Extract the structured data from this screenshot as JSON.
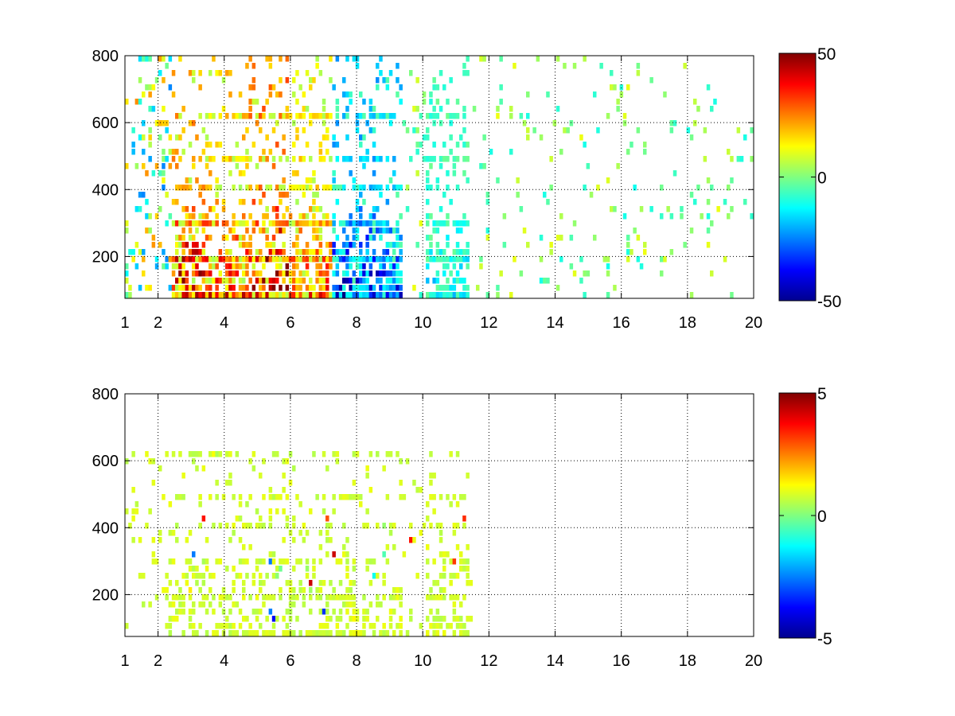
{
  "chart_data": [
    {
      "type": "heatmap",
      "name": "top-panel",
      "title": "",
      "xlabel": "",
      "ylabel": "",
      "xlim": [
        1,
        20
      ],
      "ylim": [
        75,
        800
      ],
      "x_ticks": [
        "1",
        "2",
        "4",
        "6",
        "8",
        "10",
        "12",
        "14",
        "16",
        "18",
        "20"
      ],
      "x_tick_values": [
        1,
        2,
        4,
        6,
        8,
        10,
        12,
        14,
        16,
        18,
        20
      ],
      "y_ticks": [
        "200",
        "400",
        "600",
        "800"
      ],
      "y_tick_values": [
        200,
        400,
        600,
        800
      ],
      "grid": true,
      "colormap": "jet",
      "clim": [
        -50,
        50
      ],
      "colorbar_ticks": [
        "50",
        "0",
        "-50"
      ],
      "colorbar_tick_values": [
        50,
        0,
        -50
      ],
      "density": 1.0,
      "bands": [
        {
          "x": [
            2.4,
            3.5
          ],
          "value": 38
        },
        {
          "x": [
            3.5,
            4.7
          ],
          "value": 32
        },
        {
          "x": [
            4.7,
            5.9
          ],
          "value": 44
        },
        {
          "x": [
            5.9,
            7.2
          ],
          "value": 28
        },
        {
          "x": [
            7.2,
            8.6
          ],
          "value": -34
        },
        {
          "x": [
            8.6,
            9.3
          ],
          "value": -30
        },
        {
          "x": [
            10.0,
            11.4
          ],
          "value": -14
        }
      ],
      "row_stripes_y": [
        100,
        200,
        300,
        410,
        510,
        620
      ]
    },
    {
      "type": "heatmap",
      "name": "bottom-panel",
      "title": "",
      "xlabel": "",
      "ylabel": "",
      "xlim": [
        1,
        20
      ],
      "ylim": [
        75,
        800
      ],
      "x_ticks": [
        "1",
        "2",
        "4",
        "6",
        "8",
        "10",
        "12",
        "14",
        "16",
        "18",
        "20"
      ],
      "x_tick_values": [
        1,
        2,
        4,
        6,
        8,
        10,
        12,
        14,
        16,
        18,
        20
      ],
      "y_ticks": [
        "200",
        "400",
        "600",
        "800"
      ],
      "y_tick_values": [
        200,
        400,
        600,
        800
      ],
      "grid": true,
      "colormap": "jet",
      "clim": [
        -5,
        5
      ],
      "colorbar_ticks": [
        "5",
        "0",
        "-5"
      ],
      "colorbar_tick_values": [
        5,
        0,
        -5
      ],
      "density": 0.55,
      "bands": [
        {
          "x": [
            2.2,
            9.3
          ],
          "value": 0.8
        },
        {
          "x": [
            10.0,
            11.4
          ],
          "value": 0.8
        }
      ],
      "row_stripes_y": [
        100,
        200,
        300,
        410,
        510,
        620
      ]
    }
  ]
}
